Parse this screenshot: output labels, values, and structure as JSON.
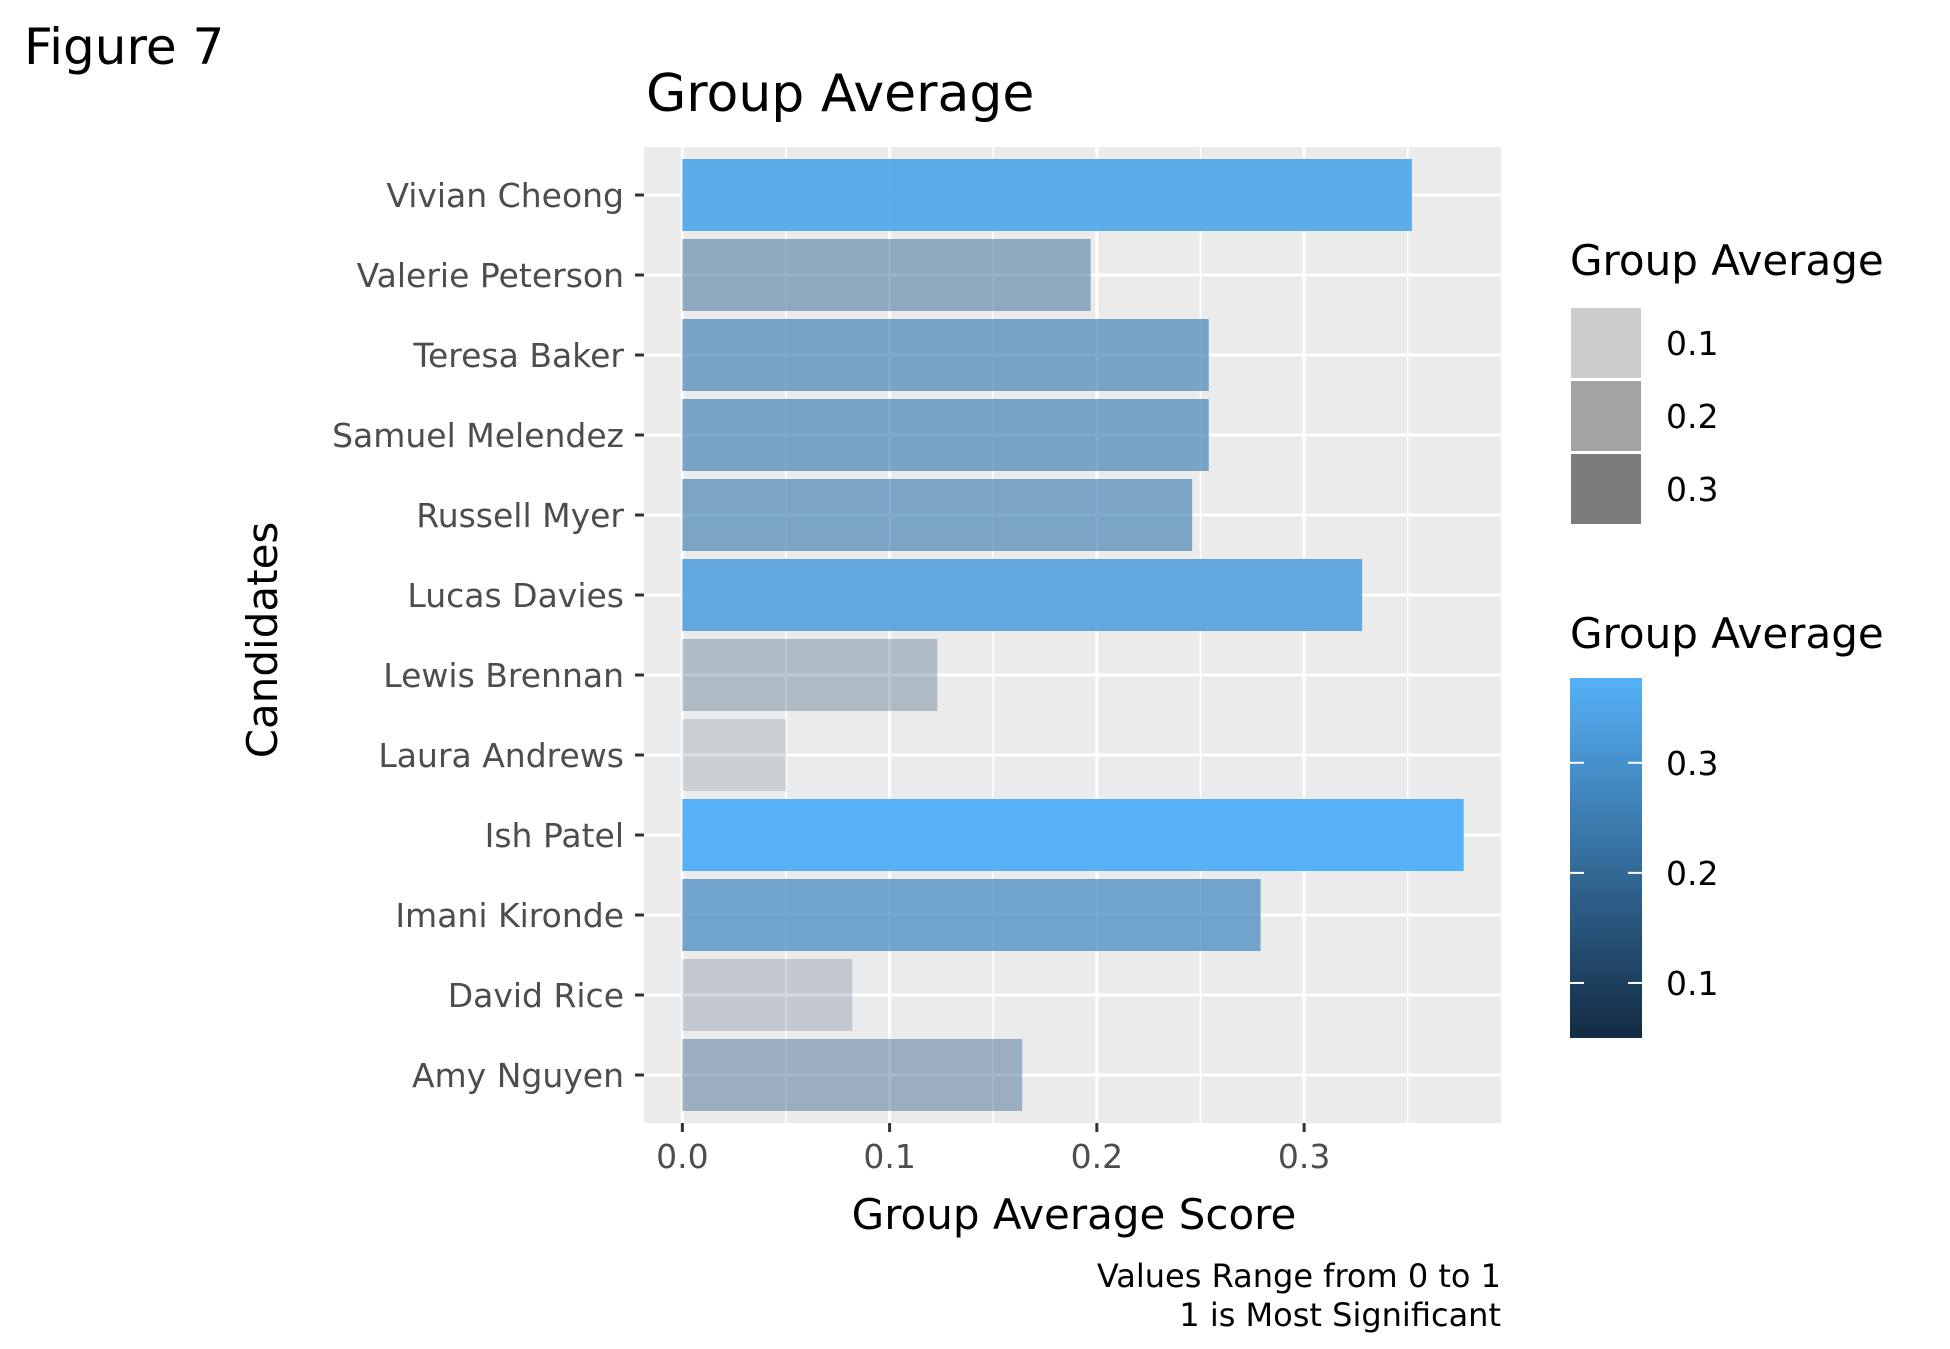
{
  "figure_label": "Figure 7",
  "chart_data": {
    "type": "bar",
    "orientation": "horizontal",
    "title": "Group Average",
    "xlabel": "Group Average Score",
    "ylabel": "Candidates",
    "caption_line1": "Values Range from 0 to 1",
    "caption_line2": "1 is Most Significant",
    "categories": [
      "Vivian Cheong",
      "Valerie Peterson",
      "Teresa Baker",
      "Samuel Melendez",
      "Russell Myer",
      "Lucas Davies",
      "Lewis Brennan",
      "Laura Andrews",
      "Ish Patel",
      "Imani Kironde",
      "David Rice",
      "Amy Nguyen"
    ],
    "values": [
      0.352,
      0.197,
      0.254,
      0.254,
      0.246,
      0.328,
      0.123,
      0.05,
      0.377,
      0.279,
      0.082,
      0.164
    ],
    "xlim": [
      -0.0185,
      0.395
    ],
    "x_ticks": [
      "0.0",
      "0.1",
      "0.2",
      "0.3"
    ],
    "x_tick_values": [
      0,
      0.1,
      0.2,
      0.3
    ],
    "grid": true,
    "legend_position": "right",
    "alpha_legend": {
      "title": "Group Average",
      "labels": [
        "0.1",
        "0.2",
        "0.3"
      ],
      "values": [
        0.1,
        0.2,
        0.3
      ],
      "swatch_colors": [
        "#cdcdcd",
        "#a3a3a3",
        "#7c7c7c"
      ]
    },
    "color_legend": {
      "title": "Group Average",
      "labels": [
        "0.3",
        "0.2",
        "0.1"
      ],
      "values": [
        0.3,
        0.2,
        0.1
      ],
      "range": [
        0.05,
        0.377
      ],
      "low_color": "#132b43",
      "high_color": "#56b1f7"
    },
    "colors": {
      "panel_background": "#ebebeb",
      "gridline": "#ffffff",
      "axis_text": "#4d4d4d",
      "tick": "#333333"
    }
  }
}
